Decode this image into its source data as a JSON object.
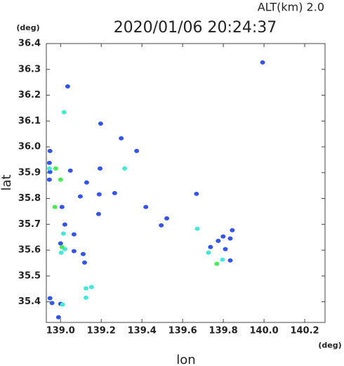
{
  "chart_data": {
    "type": "scatter",
    "title": "2020/01/06 20:24:37",
    "subtitle": "ALT(km)  2.0",
    "y_unit": "(deg)",
    "x_unit": "(deg)",
    "x_label": "lon",
    "y_label": "lat",
    "xlim": [
      138.93,
      140.3
    ],
    "ylim": [
      35.32,
      36.4
    ],
    "xticks": [
      {
        "value": 139,
        "label": "139.0"
      },
      139.2,
      139.4,
      139.6,
      139.8,
      {
        "value": 140,
        "label": "140.0"
      },
      140.2
    ],
    "yticks": [
      35.4,
      35.5,
      35.6,
      35.7,
      35.8,
      35.9,
      {
        "value": 36,
        "label": "36.0"
      },
      36.1,
      36.2,
      36.3,
      36.4
    ],
    "series": [
      {
        "color": "#3355ee",
        "x": [
          139.993,
          139.035,
          139.197,
          139.298,
          139.374,
          138.948,
          138.945,
          138.948,
          138.945,
          139.048,
          139.194,
          139.128,
          139.097,
          139.19,
          139.266,
          139.419,
          139.495,
          139.668,
          139.007,
          139.021,
          139.066,
          139.0,
          139.066,
          139.111,
          139.118,
          139.775,
          139.799,
          139.844,
          139.834,
          139.81,
          139.737,
          139.834,
          138.948,
          139.0,
          138.958,
          138.99,
          139.522,
          139.187
        ],
        "y": [
          36.327,
          36.234,
          36.09,
          36.033,
          35.984,
          35.984,
          35.938,
          35.903,
          35.873,
          35.908,
          35.916,
          35.862,
          35.808,
          35.816,
          35.821,
          35.767,
          35.696,
          35.818,
          35.767,
          35.699,
          35.661,
          35.626,
          35.596,
          35.585,
          35.552,
          35.636,
          35.653,
          35.677,
          35.645,
          35.604,
          35.612,
          35.56,
          35.414,
          35.392,
          35.395,
          35.34,
          35.723,
          35.74
        ]
      },
      {
        "color": "#44e8d8",
        "x": [
          139.017,
          138.945,
          139.315,
          139.014,
          139.021,
          139.125,
          139.125,
          139.152,
          139.01,
          139.003,
          139.796,
          139.727,
          139.672
        ],
        "y": [
          36.134,
          35.916,
          35.916,
          35.664,
          35.604,
          35.452,
          35.416,
          35.457,
          35.389,
          35.59,
          35.563,
          35.59,
          35.683
        ]
      },
      {
        "color": "#44ee55",
        "x": [
          138.972,
          139.0,
          139.007,
          139.768,
          138.976
        ],
        "y": [
          35.767,
          35.873,
          35.612,
          35.547,
          35.916
        ]
      }
    ]
  }
}
